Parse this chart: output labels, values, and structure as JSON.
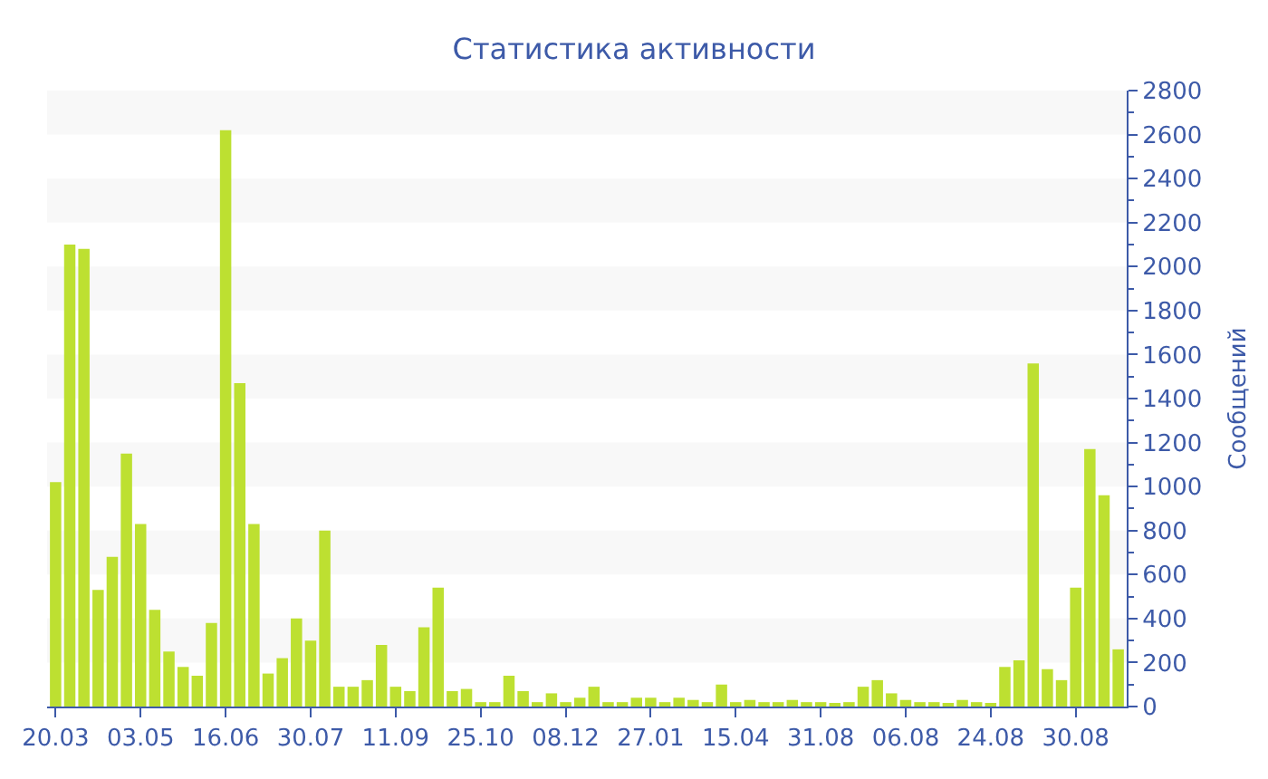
{
  "chart_data": {
    "type": "bar",
    "title": "Статистика активности",
    "ylabel": "Сообщений",
    "categories": [
      "20.03",
      null,
      null,
      null,
      null,
      null,
      "03.05",
      null,
      null,
      null,
      null,
      null,
      "16.06",
      null,
      null,
      null,
      null,
      null,
      "30.07",
      null,
      null,
      null,
      null,
      null,
      "11.09",
      null,
      null,
      null,
      null,
      null,
      "25.10",
      null,
      null,
      null,
      null,
      null,
      "08.12",
      null,
      null,
      null,
      null,
      null,
      "27.01",
      null,
      null,
      null,
      null,
      null,
      "15.04",
      null,
      null,
      null,
      null,
      null,
      "31.08",
      null,
      null,
      null,
      null,
      null,
      "06.08",
      null,
      null,
      null,
      null,
      null,
      "24.08",
      null,
      null,
      null,
      null,
      null,
      "30.08",
      null,
      null,
      null
    ],
    "values": [
      1020,
      2100,
      2080,
      530,
      680,
      1150,
      830,
      440,
      250,
      180,
      140,
      380,
      2620,
      1470,
      830,
      150,
      220,
      400,
      300,
      800,
      90,
      90,
      120,
      280,
      90,
      70,
      360,
      540,
      70,
      80,
      20,
      20,
      140,
      70,
      20,
      60,
      20,
      40,
      90,
      20,
      20,
      40,
      40,
      20,
      40,
      30,
      20,
      100,
      20,
      30,
      20,
      20,
      30,
      20,
      20,
      10,
      20,
      90,
      120,
      60,
      30,
      20,
      20,
      10,
      30,
      20,
      10,
      180,
      210,
      1560,
      170,
      120,
      540,
      1170,
      960,
      260
    ],
    "color": "#bde031",
    "ylim": [
      0,
      2800
    ],
    "yticks": [
      0,
      200,
      400,
      600,
      800,
      1000,
      1200,
      1400,
      1600,
      1800,
      2000,
      2200,
      2400,
      2600,
      2800
    ],
    "bands": [
      {
        "axis": "y",
        "from": 200,
        "to": 400,
        "color": "#f8f8f8"
      },
      {
        "axis": "y",
        "from": 600,
        "to": 800,
        "color": "#f8f8f8"
      },
      {
        "axis": "y",
        "from": 1000,
        "to": 1200,
        "color": "#f8f8f8"
      },
      {
        "axis": "y",
        "from": 1400,
        "to": 1600,
        "color": "#f8f8f8"
      },
      {
        "axis": "y",
        "from": 1800,
        "to": 2000,
        "color": "#f8f8f8"
      },
      {
        "axis": "y",
        "from": 2200,
        "to": 2400,
        "color": "#f8f8f8"
      },
      {
        "axis": "y",
        "from": 2600,
        "to": 2800,
        "color": "#f8f8f8"
      }
    ],
    "grid": false,
    "legend": false
  }
}
